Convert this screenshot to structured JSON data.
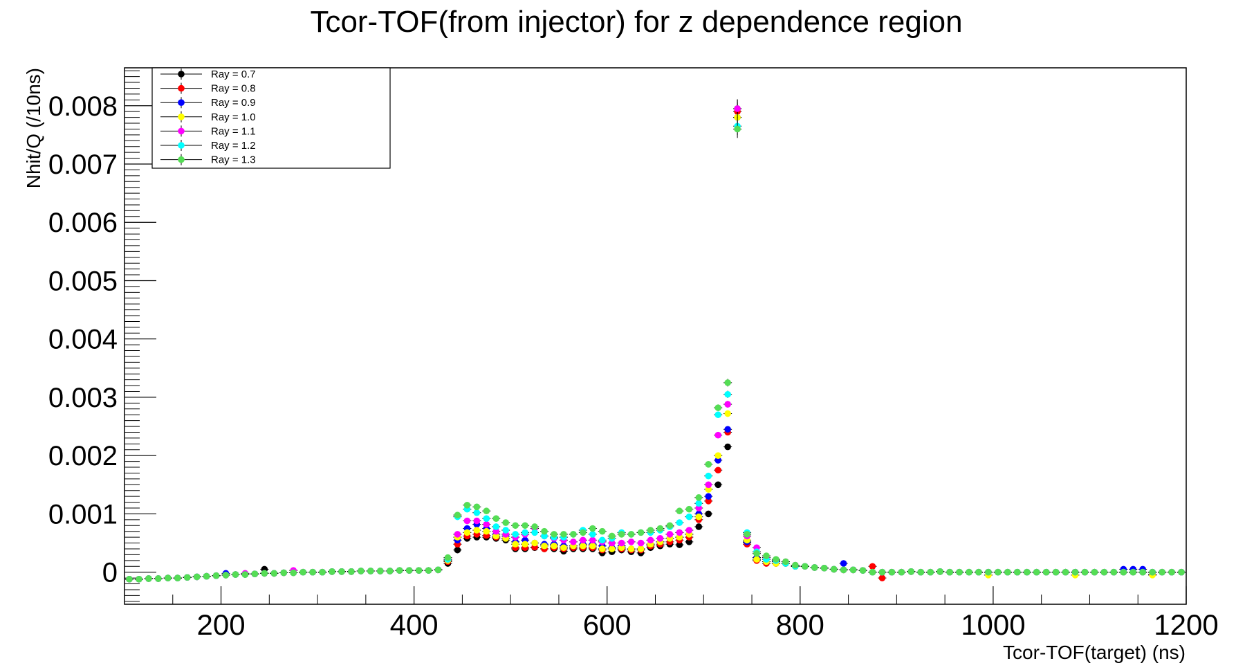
{
  "chart_data": {
    "type": "scatter",
    "title": "Tcor-TOF(from injector) for z dependence region",
    "xlabel": "Tcor-TOF(target) (ns)",
    "ylabel": "Nhit/Q (/10ns)",
    "xlim": [
      100,
      1200
    ],
    "ylim": [
      -0.00055,
      0.00865
    ],
    "x_ticks": [
      200,
      400,
      600,
      800,
      1000,
      1200
    ],
    "x_tick_labels": [
      "200",
      "400",
      "600",
      "800",
      "1000",
      "1200"
    ],
    "y_ticks": [
      0,
      0.001,
      0.002,
      0.003,
      0.004,
      0.005,
      0.006,
      0.007,
      0.008
    ],
    "y_tick_labels": [
      "0",
      "0.001",
      "0.002",
      "0.003",
      "0.004",
      "0.005",
      "0.006",
      "0.007",
      "0.008"
    ],
    "grid": false,
    "legend_position": "top-left",
    "error_bars": true,
    "x": [
      105,
      115,
      125,
      135,
      145,
      155,
      165,
      175,
      185,
      195,
      205,
      215,
      225,
      235,
      245,
      255,
      265,
      275,
      285,
      295,
      305,
      315,
      325,
      335,
      345,
      355,
      365,
      375,
      385,
      395,
      405,
      415,
      425,
      435,
      445,
      455,
      465,
      475,
      485,
      495,
      505,
      515,
      525,
      535,
      545,
      555,
      565,
      575,
      585,
      595,
      605,
      615,
      625,
      635,
      645,
      655,
      665,
      675,
      685,
      695,
      705,
      715,
      725,
      735,
      745,
      755,
      765,
      775,
      785,
      795,
      805,
      815,
      825,
      835,
      845,
      855,
      865,
      875,
      885,
      895,
      905,
      915,
      925,
      935,
      945,
      955,
      965,
      975,
      985,
      995,
      1005,
      1015,
      1025,
      1035,
      1045,
      1055,
      1065,
      1075,
      1085,
      1095,
      1105,
      1115,
      1125,
      1135,
      1145,
      1155,
      1165,
      1175,
      1185,
      1195
    ],
    "series": [
      {
        "name": "Ray = 0.7",
        "color": "#000000",
        "values": [
          -0.00012,
          -0.00012,
          -0.00011,
          -0.00011,
          -0.0001,
          -0.0001,
          -9e-05,
          -8e-05,
          -7e-05,
          -6e-05,
          -5e-05,
          -4e-05,
          -4e-05,
          -3e-05,
          5e-05,
          -2e-05,
          -1e-05,
          -1e-05,
          0.0,
          0.0,
          0.0,
          1e-05,
          1e-05,
          1e-05,
          2e-05,
          2e-05,
          2e-05,
          2e-05,
          3e-05,
          3e-05,
          3e-05,
          3e-05,
          4e-05,
          0.00015,
          0.00038,
          0.00058,
          0.0006,
          0.0006,
          0.00058,
          0.00055,
          0.0004,
          0.0004,
          0.00042,
          0.0004,
          0.0004,
          0.00036,
          0.0004,
          0.0004,
          0.0004,
          0.00033,
          0.00035,
          0.00038,
          0.00035,
          0.00033,
          0.00042,
          0.00045,
          0.00048,
          0.00047,
          0.00052,
          0.00078,
          0.001,
          0.0015,
          0.00215,
          0.00795,
          0.00051,
          0.00025,
          0.00018,
          0.00015,
          0.00015,
          0.0001,
          0.0001,
          8e-05,
          7e-05,
          5e-05,
          4e-05,
          4e-05,
          3e-05,
          0.0,
          0.0,
          0.0,
          0.0,
          1e-05,
          0.0,
          0.0,
          1e-05,
          0.0,
          0.0,
          0.0,
          0.0,
          0.0,
          0.0,
          0.0,
          0.0,
          0.0,
          0.0,
          0.0,
          0.0,
          0.0,
          0.0,
          0.0,
          0.0,
          0.0,
          0.0,
          0.0,
          0.0,
          0.0,
          0.0,
          0.0,
          0.0,
          0.0
        ]
      },
      {
        "name": "Ray = 0.8",
        "color": "#ff0000",
        "values": [
          -0.00012,
          -0.00012,
          -0.00011,
          -0.00011,
          -0.0001,
          -0.0001,
          -9e-05,
          -8e-05,
          -7e-05,
          -6e-05,
          -5e-05,
          -4e-05,
          -4e-05,
          -3e-05,
          -2e-05,
          -2e-05,
          -1e-05,
          -1e-05,
          0.0,
          0.0,
          0.0,
          1e-05,
          1e-05,
          1e-05,
          2e-05,
          2e-05,
          2e-05,
          2e-05,
          3e-05,
          3e-05,
          3e-05,
          3e-05,
          4e-05,
          0.00018,
          0.00048,
          0.00062,
          0.00065,
          0.00063,
          0.0006,
          0.00058,
          0.00042,
          0.00042,
          0.00043,
          0.0004,
          0.00042,
          0.0004,
          0.00042,
          0.00042,
          0.00042,
          0.00038,
          0.0004,
          0.0004,
          0.00038,
          0.00038,
          0.00045,
          0.00048,
          0.00052,
          0.00055,
          0.0006,
          0.0009,
          0.00122,
          0.00175,
          0.0024,
          0.0079,
          0.00048,
          0.0002,
          0.00015,
          0.00015,
          0.00015,
          0.0001,
          0.0001,
          8e-05,
          7e-05,
          5e-05,
          4e-05,
          4e-05,
          3e-05,
          0.0001,
          -0.0001,
          0.0,
          0.0,
          1e-05,
          0.0,
          0.0,
          1e-05,
          0.0,
          0.0,
          0.0,
          0.0,
          0.0,
          0.0,
          0.0,
          0.0,
          0.0,
          0.0,
          0.0,
          0.0,
          0.0,
          0.0,
          0.0,
          0.0,
          0.0,
          0.0,
          0.0,
          0.0,
          0.0,
          -4e-05,
          0.0,
          0.0,
          0.0
        ]
      },
      {
        "name": "Ray = 0.9",
        "color": "#0000ff",
        "values": [
          -0.00012,
          -0.00012,
          -0.00011,
          -0.00011,
          -0.0001,
          -0.0001,
          -9e-05,
          -8e-05,
          -7e-05,
          -6e-05,
          -2e-05,
          -4e-05,
          -4e-05,
          -3e-05,
          -2e-05,
          -2e-05,
          -1e-05,
          -1e-05,
          0.0,
          0.0,
          0.0,
          1e-05,
          1e-05,
          1e-05,
          2e-05,
          2e-05,
          2e-05,
          2e-05,
          3e-05,
          3e-05,
          3e-05,
          3e-05,
          4e-05,
          0.0002,
          0.00055,
          0.00075,
          0.00082,
          0.00075,
          0.00065,
          0.00062,
          0.00052,
          0.00055,
          0.0005,
          0.00048,
          0.00048,
          0.00045,
          0.00045,
          0.00048,
          0.00048,
          0.00045,
          0.00042,
          0.00045,
          0.0004,
          0.0004,
          0.00048,
          0.00052,
          0.00058,
          0.0006,
          0.00065,
          0.001,
          0.0013,
          0.00192,
          0.00245,
          0.0078,
          0.00052,
          0.00025,
          0.00018,
          0.00018,
          0.00015,
          0.0001,
          0.0001,
          8e-05,
          7e-05,
          5e-05,
          0.00015,
          4e-05,
          3e-05,
          0.0,
          0.0,
          0.0,
          0.0,
          1e-05,
          0.0,
          0.0,
          1e-05,
          0.0,
          0.0,
          0.0,
          0.0,
          0.0,
          0.0,
          0.0,
          0.0,
          0.0,
          0.0,
          0.0,
          0.0,
          0.0,
          0.0,
          0.0,
          0.0,
          0.0,
          0.0,
          5e-05,
          5e-05,
          5e-05,
          0.0,
          0.0,
          0.0,
          0.0
        ]
      },
      {
        "name": "Ray = 1.0",
        "color": "#ffff00",
        "values": [
          -0.00012,
          -0.00012,
          -0.00011,
          -0.00011,
          -0.0001,
          -0.0001,
          -9e-05,
          -8e-05,
          -7e-05,
          -6e-05,
          -5e-05,
          -4e-05,
          -4e-05,
          -3e-05,
          -2e-05,
          -2e-05,
          -1e-05,
          -1e-05,
          0.0,
          0.0,
          0.0,
          1e-05,
          1e-05,
          1e-05,
          2e-05,
          2e-05,
          2e-05,
          2e-05,
          3e-05,
          3e-05,
          3e-05,
          3e-05,
          4e-05,
          0.0002,
          0.0006,
          0.00068,
          0.00072,
          0.0007,
          0.00062,
          0.00058,
          0.00048,
          0.00048,
          0.0005,
          0.00045,
          0.00045,
          0.00042,
          0.00045,
          0.00045,
          0.00045,
          0.0004,
          0.0004,
          0.00042,
          0.0004,
          0.0004,
          0.00048,
          0.00052,
          0.00058,
          0.0006,
          0.00065,
          0.00095,
          0.00142,
          0.002,
          0.00272,
          0.0078,
          0.00055,
          0.00022,
          0.00018,
          0.00015,
          0.00015,
          0.0001,
          0.0001,
          8e-05,
          7e-05,
          5e-05,
          4e-05,
          4e-05,
          3e-05,
          0.0,
          0.0,
          0.0,
          0.0,
          1e-05,
          0.0,
          0.0,
          1e-05,
          0.0,
          0.0,
          0.0,
          0.0,
          -5e-05,
          0.0,
          0.0,
          0.0,
          0.0,
          0.0,
          0.0,
          0.0,
          0.0,
          -5e-05,
          0.0,
          0.0,
          0.0,
          0.0,
          0.0,
          0.0,
          0.0,
          -5e-05,
          0.0,
          0.0,
          0.0
        ]
      },
      {
        "name": "Ray = 1.1",
        "color": "#ff00ff",
        "values": [
          -0.00012,
          -0.00012,
          -0.00011,
          -0.00011,
          -0.0001,
          -0.0001,
          -9e-05,
          -8e-05,
          -7e-05,
          -6e-05,
          -5e-05,
          -4e-05,
          -2e-05,
          -3e-05,
          -2e-05,
          -2e-05,
          -1e-05,
          3e-05,
          0.0,
          0.0,
          0.0,
          1e-05,
          1e-05,
          1e-05,
          2e-05,
          2e-05,
          2e-05,
          2e-05,
          3e-05,
          3e-05,
          3e-05,
          3e-05,
          4e-05,
          0.00022,
          0.00065,
          0.00088,
          0.00088,
          0.00082,
          0.0007,
          0.00065,
          0.0006,
          0.00065,
          0.00075,
          0.00062,
          0.00058,
          0.00055,
          0.00052,
          0.00055,
          0.00055,
          0.00052,
          0.0005,
          0.0005,
          0.00052,
          0.0005,
          0.00055,
          0.00058,
          0.00065,
          0.00068,
          0.00072,
          0.0011,
          0.0015,
          0.00235,
          0.00288,
          0.00795,
          0.00062,
          0.00042,
          0.00025,
          0.0002,
          0.00018,
          0.00012,
          0.0001,
          8e-05,
          7e-05,
          5e-05,
          4e-05,
          4e-05,
          3e-05,
          0.0,
          0.0,
          0.0,
          0.0,
          1e-05,
          0.0,
          0.0,
          1e-05,
          0.0,
          0.0,
          0.0,
          0.0,
          0.0,
          0.0,
          0.0,
          0.0,
          0.0,
          0.0,
          0.0,
          0.0,
          0.0,
          0.0,
          0.0,
          0.0,
          0.0,
          0.0,
          0.0,
          0.0,
          0.0,
          0.0,
          0.0,
          0.0,
          0.0
        ]
      },
      {
        "name": "Ray = 1.2",
        "color": "#00ffff",
        "values": [
          -0.00012,
          -0.00012,
          -0.00011,
          -0.00011,
          -0.0001,
          -0.0001,
          -9e-05,
          -8e-05,
          -7e-05,
          -6e-05,
          -5e-05,
          -4e-05,
          -4e-05,
          -3e-05,
          -2e-05,
          -2e-05,
          -1e-05,
          -1e-05,
          0.0,
          0.0,
          0.0,
          1e-05,
          1e-05,
          1e-05,
          2e-05,
          2e-05,
          2e-05,
          2e-05,
          3e-05,
          3e-05,
          3e-05,
          3e-05,
          4e-05,
          0.00022,
          0.00095,
          0.00108,
          0.00102,
          0.00092,
          0.00078,
          0.00072,
          0.00065,
          0.00068,
          0.00068,
          0.00062,
          0.0006,
          0.0006,
          0.00065,
          0.00072,
          0.00065,
          0.00055,
          0.00058,
          0.00068,
          0.00065,
          0.00068,
          0.00068,
          0.00072,
          0.00078,
          0.00085,
          0.00095,
          0.00118,
          0.00165,
          0.0027,
          0.00305,
          0.00765,
          0.00068,
          0.00035,
          0.00022,
          0.0002,
          0.00015,
          0.0001,
          0.0001,
          8e-05,
          7e-05,
          5e-05,
          4e-05,
          4e-05,
          3e-05,
          0.0,
          0.0,
          0.0,
          0.0,
          1e-05,
          0.0,
          0.0,
          1e-05,
          0.0,
          0.0,
          0.0,
          0.0,
          0.0,
          0.0,
          0.0,
          0.0,
          0.0,
          0.0,
          0.0,
          0.0,
          0.0,
          0.0,
          0.0,
          0.0,
          0.0,
          0.0,
          0.0,
          0.0,
          0.0,
          0.0,
          0.0,
          0.0,
          0.0
        ]
      },
      {
        "name": "Ray = 1.3",
        "color": "#55dd55",
        "values": [
          -0.00012,
          -0.00012,
          -0.00011,
          -0.00011,
          -0.0001,
          -0.0001,
          -9e-05,
          -8e-05,
          -7e-05,
          -6e-05,
          -5e-05,
          -4e-05,
          -4e-05,
          -3e-05,
          -2e-05,
          -2e-05,
          -1e-05,
          -1e-05,
          0.0,
          0.0,
          0.0,
          1e-05,
          1e-05,
          1e-05,
          2e-05,
          2e-05,
          2e-05,
          2e-05,
          3e-05,
          3e-05,
          3e-05,
          3e-05,
          4e-05,
          0.00025,
          0.00098,
          0.00115,
          0.00112,
          0.00105,
          0.00092,
          0.00085,
          0.0008,
          0.0008,
          0.00078,
          0.0007,
          0.00065,
          0.00065,
          0.00065,
          0.00068,
          0.00075,
          0.0007,
          0.00062,
          0.00065,
          0.00065,
          0.00068,
          0.00072,
          0.00075,
          0.0008,
          0.00105,
          0.00108,
          0.00128,
          0.00185,
          0.00282,
          0.00325,
          0.0076,
          0.00065,
          0.00032,
          0.00028,
          0.00022,
          0.00018,
          0.00012,
          0.0001,
          8e-05,
          7e-05,
          5e-05,
          4e-05,
          4e-05,
          3e-05,
          0.0,
          0.0,
          0.0,
          0.0,
          1e-05,
          0.0,
          0.0,
          1e-05,
          0.0,
          0.0,
          0.0,
          0.0,
          0.0,
          0.0,
          0.0,
          0.0,
          0.0,
          0.0,
          0.0,
          0.0,
          0.0,
          0.0,
          0.0,
          0.0,
          0.0,
          0.0,
          0.0,
          0.0,
          0.0,
          0.0,
          0.0,
          0.0,
          0.0
        ]
      }
    ]
  }
}
